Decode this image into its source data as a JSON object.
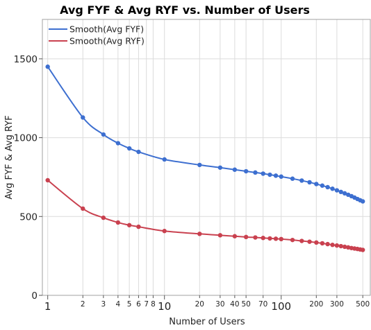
{
  "chart_data": {
    "type": "line",
    "title": "Avg FYF & Avg RYF vs. Number of Users",
    "xlabel": "Number of Users",
    "ylabel": "Avg FYF & Avg RYF",
    "x_scale": "log",
    "xlim": [
      0.9,
      580
    ],
    "ylim": [
      0,
      1750
    ],
    "grid": true,
    "legend": "top-left",
    "x_major_ticks": [
      1,
      10,
      100
    ],
    "x_major_tick_labels": [
      "1",
      "10",
      "100"
    ],
    "x_minor_ticks": [
      2,
      3,
      4,
      5,
      6,
      7,
      8,
      20,
      30,
      40,
      50,
      70,
      200,
      300,
      500
    ],
    "x_minor_tick_labels": [
      "2",
      "3",
      "4",
      "5",
      "6",
      "7",
      "8",
      "20",
      "30",
      "40",
      "50",
      "70",
      "200",
      "300",
      "500"
    ],
    "y_ticks": [
      0,
      500,
      1000,
      1500
    ],
    "y_tick_labels": [
      "0",
      "500",
      "1000",
      "1500"
    ],
    "x": [
      1,
      2,
      3,
      4,
      5,
      6,
      10,
      20,
      30,
      40,
      50,
      60,
      70,
      80,
      90,
      100,
      125,
      150,
      175,
      200,
      225,
      250,
      275,
      300,
      325,
      350,
      375,
      400,
      425,
      450,
      475,
      500
    ],
    "series": [
      {
        "name": "Smooth(Avg FYF)",
        "color": "#3d6fd0",
        "values": [
          1450,
          1128,
          1020,
          965,
          932,
          910,
          862,
          827,
          810,
          797,
          787,
          779,
          772,
          765,
          759,
          753,
          740,
          728,
          717,
          706,
          696,
          686,
          676,
          666,
          656,
          647,
          638,
          629,
          620,
          611,
          603,
          596
        ]
      },
      {
        "name": "Smooth(Avg RYF)",
        "color": "#c9414f",
        "values": [
          730,
          550,
          492,
          462,
          445,
          435,
          408,
          390,
          381,
          375,
          370,
          367,
          364,
          361,
          359,
          357,
          351,
          345,
          340,
          335,
          330,
          325,
          320,
          316,
          312,
          308,
          304,
          300,
          297,
          294,
          291,
          288
        ]
      }
    ]
  }
}
